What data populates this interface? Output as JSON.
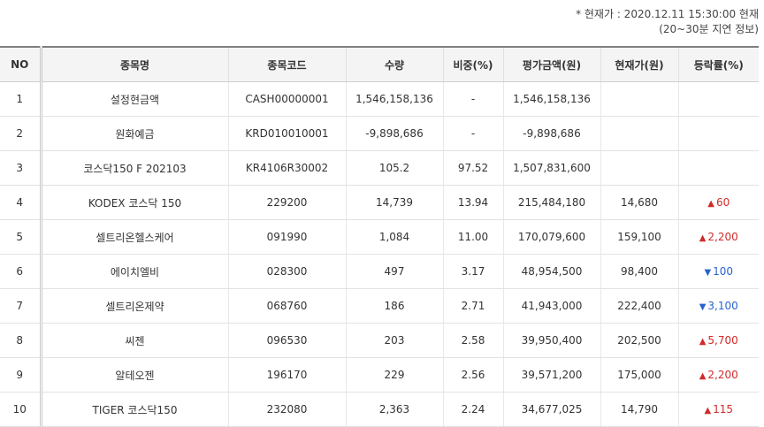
{
  "note": {
    "line1": "* 현재가 : 2020.12.11 15:30:00 현재",
    "line2": "(20~30분 지연 정보)"
  },
  "colors": {
    "up": "#d12a2a",
    "down": "#2a62d1"
  },
  "table": {
    "headers": [
      "NO",
      "종목명",
      "종목코드",
      "수량",
      "비중(%)",
      "평가금액(원)",
      "현재가(원)",
      "등락률(%)"
    ],
    "rows": [
      {
        "no": "1",
        "name": "설정현금액",
        "code": "CASH00000001",
        "qty": "1,546,158,136",
        "weight": "-",
        "value": "1,546,158,136",
        "price": "",
        "change": "",
        "dir": ""
      },
      {
        "no": "2",
        "name": "원화예금",
        "code": "KRD010010001",
        "qty": "-9,898,686",
        "weight": "-",
        "value": "-9,898,686",
        "price": "",
        "change": "",
        "dir": ""
      },
      {
        "no": "3",
        "name": "코스닥150 F 202103",
        "code": "KR4106R30002",
        "qty": "105.2",
        "weight": "97.52",
        "value": "1,507,831,600",
        "price": "",
        "change": "",
        "dir": ""
      },
      {
        "no": "4",
        "name": "KODEX 코스닥 150",
        "code": "229200",
        "qty": "14,739",
        "weight": "13.94",
        "value": "215,484,180",
        "price": "14,680",
        "change": "60",
        "dir": "up"
      },
      {
        "no": "5",
        "name": "셀트리온헬스케어",
        "code": "091990",
        "qty": "1,084",
        "weight": "11.00",
        "value": "170,079,600",
        "price": "159,100",
        "change": "2,200",
        "dir": "up"
      },
      {
        "no": "6",
        "name": "에이치엘비",
        "code": "028300",
        "qty": "497",
        "weight": "3.17",
        "value": "48,954,500",
        "price": "98,400",
        "change": "100",
        "dir": "down"
      },
      {
        "no": "7",
        "name": "셀트리온제약",
        "code": "068760",
        "qty": "186",
        "weight": "2.71",
        "value": "41,943,000",
        "price": "222,400",
        "change": "3,100",
        "dir": "down"
      },
      {
        "no": "8",
        "name": "씨젠",
        "code": "096530",
        "qty": "203",
        "weight": "2.58",
        "value": "39,950,400",
        "price": "202,500",
        "change": "5,700",
        "dir": "up"
      },
      {
        "no": "9",
        "name": "알테오젠",
        "code": "196170",
        "qty": "229",
        "weight": "2.56",
        "value": "39,571,200",
        "price": "175,000",
        "change": "2,200",
        "dir": "up"
      },
      {
        "no": "10",
        "name": "TIGER 코스닥150",
        "code": "232080",
        "qty": "2,363",
        "weight": "2.24",
        "value": "34,677,025",
        "price": "14,790",
        "change": "115",
        "dir": "up"
      }
    ]
  }
}
